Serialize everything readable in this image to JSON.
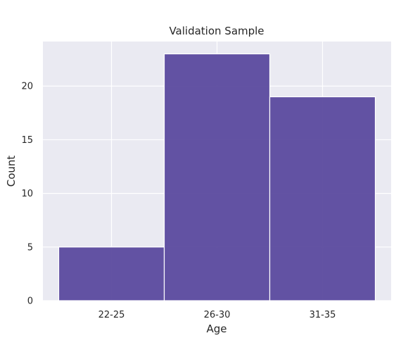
{
  "chart_data": {
    "type": "bar",
    "title": "Validation Sample",
    "xlabel": "Age",
    "ylabel": "Count",
    "categories": [
      "22-25",
      "26-30",
      "31-35"
    ],
    "values": [
      5,
      23,
      19
    ],
    "ylim": [
      0,
      24.15
    ],
    "yticks": [
      0,
      5,
      10,
      15,
      20
    ],
    "grid": true,
    "colors": {
      "bar": "#5b4a9e",
      "bar_edge": "#ffffff",
      "plot_background": "#eaeaf2",
      "grid": "#ffffff"
    }
  }
}
